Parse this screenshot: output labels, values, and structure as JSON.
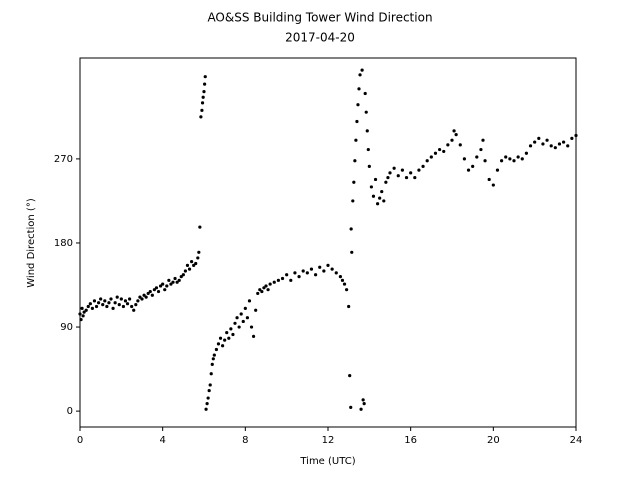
{
  "chart_data": {
    "type": "scatter",
    "title": "AO&SS Building Tower Wind Direction",
    "subtitle": "2017-04-20",
    "xlabel": "Time (UTC)",
    "ylabel": "Wind Direction (°)",
    "color": "#000000",
    "xlim": [
      0,
      24
    ],
    "ylim": [
      -17,
      378
    ],
    "xticks": [
      0,
      4,
      8,
      12,
      16,
      20,
      24
    ],
    "yticks": [
      0,
      90,
      180,
      270
    ],
    "grid": false,
    "x": [
      0.0,
      0.05,
      0.1,
      0.15,
      0.2,
      0.3,
      0.4,
      0.5,
      0.6,
      0.7,
      0.8,
      0.9,
      1.0,
      1.1,
      1.2,
      1.3,
      1.4,
      1.5,
      1.6,
      1.7,
      1.8,
      1.9,
      2.0,
      2.1,
      2.2,
      2.3,
      2.4,
      2.5,
      2.6,
      2.7,
      2.8,
      2.9,
      3.0,
      3.1,
      3.2,
      3.3,
      3.4,
      3.5,
      3.6,
      3.7,
      3.8,
      3.9,
      4.0,
      4.1,
      4.2,
      4.3,
      4.4,
      4.5,
      4.6,
      4.7,
      4.8,
      4.9,
      5.0,
      5.1,
      5.2,
      5.3,
      5.4,
      5.5,
      5.6,
      5.7,
      5.75,
      5.8,
      5.85,
      5.9,
      5.93,
      5.96,
      6.0,
      6.03,
      6.06,
      6.1,
      6.15,
      6.2,
      6.25,
      6.3,
      6.35,
      6.4,
      6.45,
      6.5,
      6.6,
      6.7,
      6.8,
      6.9,
      7.0,
      7.1,
      7.2,
      7.3,
      7.4,
      7.5,
      7.6,
      7.7,
      7.8,
      7.9,
      8.0,
      8.1,
      8.2,
      8.3,
      8.4,
      8.5,
      8.6,
      8.7,
      8.8,
      8.9,
      9.0,
      9.1,
      9.2,
      9.4,
      9.6,
      9.8,
      10.0,
      10.2,
      10.4,
      10.6,
      10.8,
      11.0,
      11.2,
      11.4,
      11.6,
      11.8,
      12.0,
      12.2,
      12.4,
      12.6,
      12.7,
      12.8,
      12.9,
      13.0,
      13.05,
      13.1,
      13.12,
      13.15,
      13.2,
      13.25,
      13.3,
      13.35,
      13.4,
      13.45,
      13.5,
      13.55,
      13.6,
      13.65,
      13.7,
      13.75,
      13.8,
      13.85,
      13.9,
      13.95,
      14.0,
      14.1,
      14.2,
      14.3,
      14.4,
      14.5,
      14.6,
      14.7,
      14.8,
      14.9,
      15.0,
      15.2,
      15.4,
      15.6,
      15.8,
      16.0,
      16.2,
      16.4,
      16.6,
      16.8,
      17.0,
      17.2,
      17.4,
      17.6,
      17.8,
      18.0,
      18.1,
      18.2,
      18.4,
      18.6,
      18.8,
      19.0,
      19.2,
      19.4,
      19.5,
      19.6,
      19.8,
      20.0,
      20.2,
      20.4,
      20.6,
      20.8,
      21.0,
      21.2,
      21.4,
      21.6,
      21.8,
      22.0,
      22.2,
      22.4,
      22.6,
      22.8,
      23.0,
      23.2,
      23.4,
      23.6,
      23.8,
      24.0
    ],
    "values": [
      104,
      98,
      110,
      102,
      106,
      108,
      112,
      115,
      110,
      118,
      112,
      116,
      120,
      114,
      118,
      112,
      116,
      120,
      110,
      116,
      122,
      114,
      120,
      112,
      118,
      115,
      120,
      112,
      108,
      114,
      118,
      122,
      120,
      124,
      122,
      126,
      128,
      124,
      130,
      132,
      128,
      134,
      136,
      130,
      134,
      140,
      136,
      138,
      142,
      138,
      140,
      144,
      146,
      150,
      156,
      152,
      160,
      156,
      158,
      164,
      170,
      197,
      315,
      322,
      330,
      336,
      342,
      350,
      358,
      2,
      8,
      14,
      22,
      28,
      40,
      50,
      56,
      60,
      66,
      72,
      78,
      70,
      76,
      84,
      78,
      88,
      82,
      94,
      100,
      90,
      104,
      96,
      110,
      100,
      118,
      90,
      80,
      108,
      126,
      130,
      128,
      132,
      134,
      130,
      136,
      138,
      140,
      142,
      146,
      140,
      148,
      144,
      150,
      148,
      152,
      146,
      154,
      150,
      156,
      152,
      148,
      144,
      140,
      136,
      130,
      112,
      38,
      4,
      195,
      170,
      225,
      245,
      268,
      290,
      310,
      328,
      345,
      360,
      2,
      365,
      12,
      8,
      340,
      320,
      300,
      280,
      262,
      240,
      230,
      248,
      222,
      228,
      235,
      225,
      245,
      250,
      255,
      260,
      252,
      258,
      250,
      255,
      250,
      258,
      262,
      268,
      272,
      276,
      280,
      278,
      285,
      290,
      300,
      296,
      285,
      270,
      258,
      262,
      272,
      280,
      290,
      268,
      248,
      242,
      258,
      268,
      272,
      270,
      268,
      272,
      270,
      276,
      284,
      288,
      292,
      286,
      290,
      284,
      282,
      286,
      288,
      284,
      292,
      295
    ]
  }
}
